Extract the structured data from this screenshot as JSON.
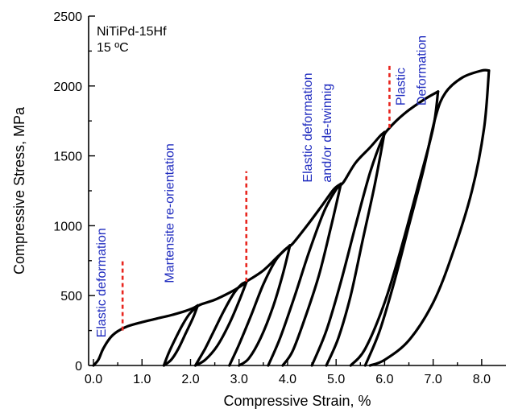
{
  "chart_data": {
    "type": "line",
    "xlabel": "Compressive Strain, %",
    "ylabel": "Compressive Stress, MPa",
    "xlim": [
      -0.1,
      8.5
    ],
    "ylim": [
      0,
      2500
    ],
    "xticks": [
      0.0,
      1.0,
      2.0,
      3.0,
      4.0,
      5.0,
      6.0,
      7.0,
      8.0
    ],
    "xtick_labels": [
      "0.0",
      "1.0",
      "2.0",
      "3.0",
      "4.0",
      "5.0",
      "6.0",
      "7.0",
      "8.0"
    ],
    "yticks": [
      0,
      500,
      1000,
      1500,
      2000,
      2500
    ],
    "ytick_labels": [
      "0",
      "500",
      "1000",
      "1500",
      "2000",
      "2500"
    ],
    "sample_label": [
      "NiTiPd-15Hf",
      "15 ºC"
    ],
    "grid": false,
    "cycles": [
      {
        "loading": [
          [
            0.0,
            0
          ],
          [
            0.1,
            40
          ],
          [
            0.2,
            120
          ],
          [
            0.35,
            200
          ],
          [
            0.5,
            245
          ],
          [
            0.7,
            280
          ],
          [
            1.0,
            310
          ],
          [
            1.3,
            335
          ],
          [
            1.6,
            360
          ],
          [
            1.85,
            385
          ],
          [
            2.05,
            410
          ],
          [
            2.15,
            430
          ]
        ],
        "unloading": [
          [
            2.15,
            430
          ],
          [
            2.05,
            340
          ],
          [
            1.9,
            230
          ],
          [
            1.75,
            120
          ],
          [
            1.6,
            40
          ],
          [
            1.45,
            0
          ]
        ]
      },
      {
        "loading": [
          [
            1.45,
            0
          ],
          [
            1.55,
            90
          ],
          [
            1.7,
            200
          ],
          [
            1.85,
            300
          ],
          [
            1.98,
            370
          ],
          [
            2.1,
            410
          ],
          [
            2.2,
            435
          ],
          [
            2.5,
            470
          ],
          [
            2.8,
            520
          ],
          [
            3.0,
            560
          ],
          [
            3.15,
            595
          ]
        ],
        "unloading": [
          [
            3.15,
            595
          ],
          [
            3.0,
            460
          ],
          [
            2.8,
            300
          ],
          [
            2.55,
            140
          ],
          [
            2.3,
            40
          ],
          [
            2.1,
            0
          ]
        ]
      },
      {
        "loading": [
          [
            2.1,
            0
          ],
          [
            2.3,
            120
          ],
          [
            2.5,
            260
          ],
          [
            2.7,
            400
          ],
          [
            2.9,
            520
          ],
          [
            3.05,
            580
          ],
          [
            3.15,
            600
          ],
          [
            3.5,
            680
          ],
          [
            3.8,
            780
          ],
          [
            4.05,
            860
          ]
        ],
        "unloading": [
          [
            4.05,
            860
          ],
          [
            3.9,
            650
          ],
          [
            3.7,
            420
          ],
          [
            3.45,
            200
          ],
          [
            3.2,
            50
          ],
          [
            3.0,
            0
          ]
        ]
      },
      {
        "loading": [
          [
            2.8,
            0
          ],
          [
            3.0,
            150
          ],
          [
            3.25,
            360
          ],
          [
            3.5,
            580
          ],
          [
            3.75,
            750
          ],
          [
            3.95,
            830
          ],
          [
            4.1,
            870
          ],
          [
            4.4,
            1000
          ],
          [
            4.7,
            1140
          ],
          [
            4.95,
            1260
          ],
          [
            5.1,
            1300
          ]
        ],
        "unloading": [
          [
            5.1,
            1300
          ],
          [
            4.9,
            1000
          ],
          [
            4.65,
            650
          ],
          [
            4.35,
            330
          ],
          [
            4.1,
            100
          ],
          [
            3.9,
            0
          ]
        ]
      },
      {
        "loading": [
          [
            3.6,
            0
          ],
          [
            3.85,
            200
          ],
          [
            4.15,
            500
          ],
          [
            4.45,
            820
          ],
          [
            4.75,
            1100
          ],
          [
            5.0,
            1260
          ],
          [
            5.15,
            1310
          ],
          [
            5.4,
            1450
          ],
          [
            5.7,
            1560
          ],
          [
            5.9,
            1640
          ],
          [
            6.0,
            1670
          ]
        ],
        "unloading": [
          [
            6.0,
            1670
          ],
          [
            5.8,
            1300
          ],
          [
            5.55,
            900
          ],
          [
            5.3,
            500
          ],
          [
            5.05,
            200
          ],
          [
            4.8,
            0
          ]
        ]
      },
      {
        "loading": [
          [
            4.5,
            0
          ],
          [
            4.8,
            250
          ],
          [
            5.1,
            600
          ],
          [
            5.4,
            1000
          ],
          [
            5.7,
            1380
          ],
          [
            5.95,
            1620
          ],
          [
            6.1,
            1700
          ],
          [
            6.4,
            1800
          ],
          [
            6.8,
            1900
          ],
          [
            7.1,
            1960
          ]
        ],
        "unloading": [
          [
            7.1,
            1960
          ],
          [
            7.0,
            1700
          ],
          [
            6.7,
            1300
          ],
          [
            6.35,
            850
          ],
          [
            6.0,
            450
          ],
          [
            5.6,
            120
          ],
          [
            5.3,
            0
          ]
        ]
      },
      {
        "loading": [
          [
            5.6,
            0
          ],
          [
            5.9,
            250
          ],
          [
            6.2,
            600
          ],
          [
            6.5,
            1000
          ],
          [
            6.8,
            1400
          ],
          [
            7.05,
            1780
          ],
          [
            7.25,
            1950
          ],
          [
            7.6,
            2060
          ],
          [
            8.0,
            2110
          ],
          [
            8.15,
            2110
          ]
        ],
        "unloading": [
          [
            8.15,
            2110
          ],
          [
            8.05,
            1700
          ],
          [
            7.8,
            1250
          ],
          [
            7.4,
            800
          ],
          [
            7.0,
            450
          ],
          [
            6.5,
            180
          ],
          [
            6.0,
            40
          ],
          [
            5.7,
            0
          ]
        ]
      }
    ],
    "annotations": [
      {
        "text": "Elastic deformation",
        "x": 0.25,
        "y": 200
      },
      {
        "text": "Martensite re-orientation",
        "x": 1.65,
        "y": 590
      },
      {
        "text": "Elastic deformation",
        "x": 4.5,
        "y": 1310
      },
      {
        "text": "and/or de-twinnig",
        "x": 4.9,
        "y": 1310
      },
      {
        "text": "Plastic",
        "x": 6.42,
        "y": 1860
      },
      {
        "text": "Deformation",
        "x": 6.85,
        "y": 1860
      }
    ],
    "dashed_markers": [
      {
        "x": 0.6,
        "y0": 250,
        "y1": 750
      },
      {
        "x": 3.15,
        "y0": 600,
        "y1": 1390
      },
      {
        "x": 6.1,
        "y0": 1700,
        "y1": 2150
      }
    ],
    "colors": {
      "curve": "#000000",
      "annotation": "#1f2bbf",
      "marker": "#e8261f"
    }
  }
}
